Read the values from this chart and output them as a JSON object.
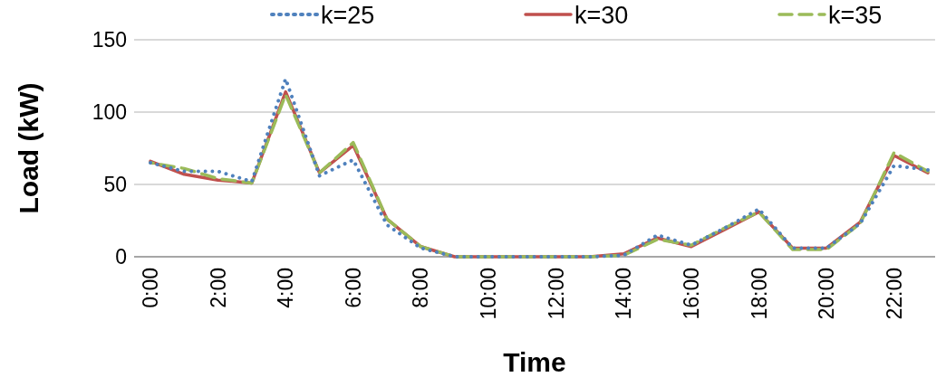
{
  "chart_data": {
    "type": "line",
    "xlabel": "Time",
    "ylabel": "Load (kW)",
    "categories": [
      "0:00",
      null,
      "2:00",
      null,
      "4:00",
      null,
      "6:00",
      null,
      "8:00",
      null,
      "10:00",
      null,
      "12:00",
      null,
      "14:00",
      null,
      "16:00",
      null,
      "18:00",
      null,
      "20:00",
      null,
      "22:00",
      null
    ],
    "series": [
      {
        "name": "k=25",
        "color": "#4f81bd",
        "line_style": "dotted",
        "values": [
          65,
          59,
          59,
          52,
          123,
          56,
          67,
          22,
          6,
          0,
          0,
          0,
          0,
          0,
          1,
          15,
          8,
          20,
          33,
          6,
          6,
          23,
          63,
          60
        ]
      },
      {
        "name": "k=30",
        "color": "#c0504d",
        "line_style": "solid",
        "values": [
          66,
          57,
          53,
          51,
          114,
          58,
          77,
          26,
          7,
          0,
          0,
          0,
          0,
          0,
          2,
          13,
          7,
          19,
          31,
          6,
          6,
          24,
          70,
          58
        ]
      },
      {
        "name": "k=35",
        "color": "#9bbb59",
        "line_style": "dashed",
        "values": [
          65,
          61,
          54,
          51,
          112,
          58,
          79,
          26,
          7,
          0,
          0,
          0,
          0,
          0,
          1,
          12,
          8,
          20,
          31,
          5,
          5,
          23,
          72,
          59
        ]
      }
    ],
    "ylim": [
      0,
      150
    ],
    "yticks": [
      0,
      50,
      100,
      150
    ],
    "grid": "y",
    "legend": "top",
    "marker": "none"
  }
}
